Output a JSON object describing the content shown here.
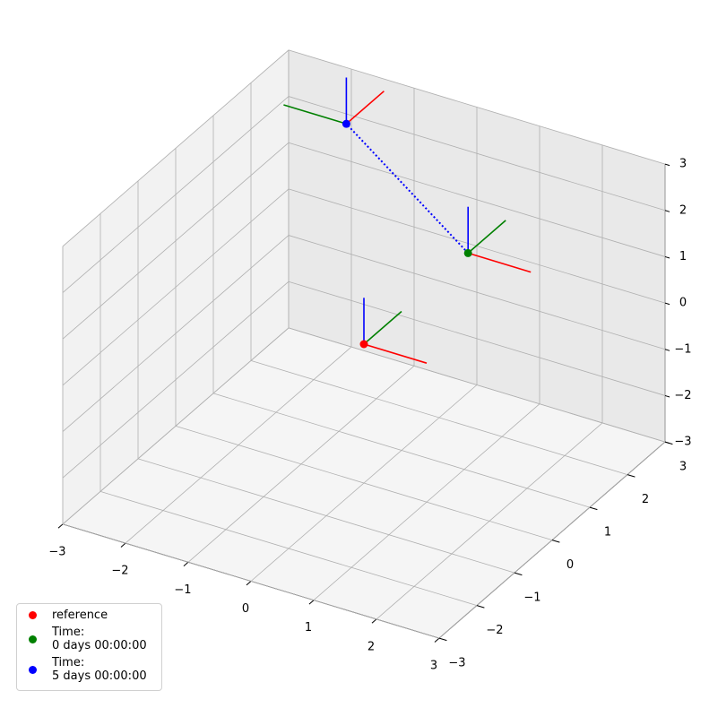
{
  "chart_data": {
    "type": "scatter3d",
    "xlim": [
      -3,
      3
    ],
    "ylim": [
      -3,
      3
    ],
    "zlim": [
      -3,
      3
    ],
    "xticks": [
      {
        "value": -3,
        "label": "−3"
      },
      {
        "value": -2,
        "label": "−2"
      },
      {
        "value": -1,
        "label": "−1"
      },
      0,
      1,
      2,
      3
    ],
    "yticks": [
      {
        "value": -3,
        "label": "−3"
      },
      {
        "value": -2,
        "label": "−2"
      },
      {
        "value": -1,
        "label": "−1"
      },
      0,
      1,
      2,
      3
    ],
    "zticks": [
      {
        "value": -3,
        "label": "−3"
      },
      {
        "value": -2,
        "label": "−2"
      },
      {
        "value": -1,
        "label": "−1"
      },
      0,
      1,
      2,
      3
    ],
    "grid": true,
    "legend": "lower left",
    "axis_colors": [
      "red",
      "green",
      "blue"
    ],
    "series": [
      {
        "name": "reference",
        "color": "red",
        "position": [
          0,
          0,
          0
        ],
        "axes": [
          [
            1,
            0,
            0
          ],
          [
            0,
            1,
            0
          ],
          [
            0,
            0,
            1
          ]
        ]
      },
      {
        "name": "Time:\n0 days 00:00:00",
        "color": "green",
        "position": [
          1,
          1.1,
          1.6
        ],
        "axes": [
          [
            1,
            0,
            0
          ],
          [
            0,
            1,
            0
          ],
          [
            0,
            0,
            1
          ]
        ]
      },
      {
        "name": "Time:\n5 days 00:00:00",
        "color": "blue",
        "position": [
          -1,
          1.2,
          3.5
        ],
        "axes": [
          [
            0,
            1,
            0
          ],
          [
            -1,
            0,
            0
          ],
          [
            0,
            0,
            1
          ]
        ]
      }
    ],
    "trajectory": {
      "color": "blue",
      "style": "dotted"
    }
  }
}
